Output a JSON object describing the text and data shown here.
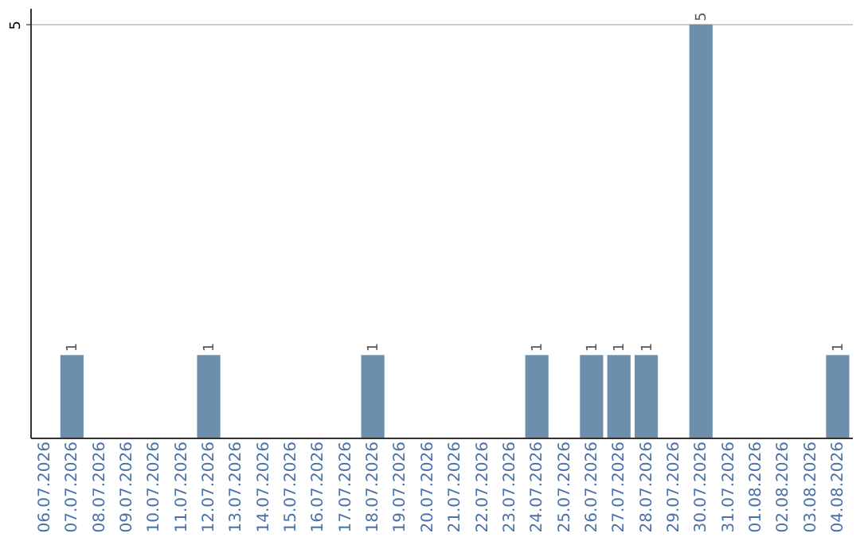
{
  "chart_data": {
    "type": "bar",
    "categories": [
      "06.07.2026",
      "07.07.2026",
      "08.07.2026",
      "09.07.2026",
      "10.07.2026",
      "11.07.2026",
      "12.07.2026",
      "13.07.2026",
      "14.07.2026",
      "15.07.2026",
      "16.07.2026",
      "17.07.2026",
      "18.07.2026",
      "19.07.2026",
      "20.07.2026",
      "21.07.2026",
      "22.07.2026",
      "23.07.2026",
      "24.07.2026",
      "25.07.2026",
      "26.07.2026",
      "27.07.2026",
      "28.07.2026",
      "29.07.2026",
      "30.07.2026",
      "31.07.2026",
      "01.08.2026",
      "02.08.2026",
      "03.08.2026",
      "04.08.2026"
    ],
    "values": [
      null,
      1,
      null,
      null,
      null,
      null,
      1,
      null,
      null,
      null,
      null,
      null,
      1,
      null,
      null,
      null,
      null,
      null,
      1,
      null,
      1,
      1,
      1,
      null,
      5,
      null,
      null,
      null,
      null,
      1
    ],
    "color": "#6d8fad",
    "ylim": [
      0,
      5.2
    ],
    "yticks": [
      5
    ],
    "grid": "y",
    "data_labels": true
  }
}
